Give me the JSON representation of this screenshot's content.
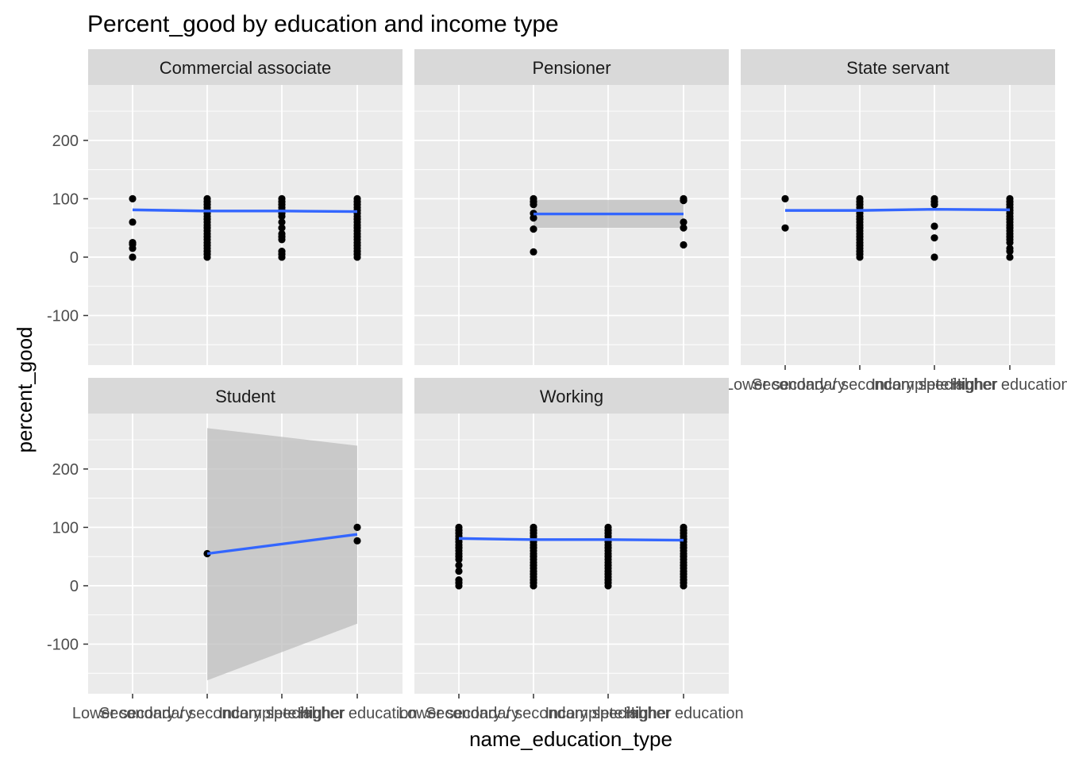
{
  "chart_data": {
    "type": "scatter",
    "title": "Percent_good by education and income type",
    "xlabel": "name_education_type",
    "ylabel": "percent_good",
    "x_categories": [
      "Lower secondary",
      "Secondary / secondary special",
      "Incomplete higher",
      "Higher education"
    ],
    "y_ticks": [
      -100,
      0,
      100,
      200
    ],
    "ylim": [
      -185,
      295
    ],
    "grid": true,
    "facet_layout": "3 columns, 2 rows",
    "colors": {
      "panel_background": "#EBEBEB",
      "strip_background": "#D9D9D9",
      "gridline": "#FFFFFF",
      "point": "#000000",
      "smooth_line": "#3366FF",
      "confidence_band": "#BDBDBD"
    },
    "facets": [
      {
        "label": "Commercial associate",
        "points": [
          {
            "category": 0,
            "values": [
              100,
              60,
              25,
              22,
              15,
              0
            ]
          },
          {
            "category": 1,
            "values": [
              100,
              95,
              90,
              85,
              80,
              75,
              70,
              65,
              60,
              55,
              50,
              45,
              40,
              35,
              30,
              25,
              20,
              15,
              10,
              5,
              0
            ]
          },
          {
            "category": 2,
            "values": [
              100,
              95,
              90,
              85,
              80,
              75,
              70,
              60,
              50,
              40,
              35,
              30,
              10,
              5,
              0
            ]
          },
          {
            "category": 3,
            "values": [
              100,
              95,
              90,
              85,
              80,
              75,
              70,
              65,
              60,
              55,
              50,
              45,
              40,
              35,
              30,
              25,
              20,
              15,
              10,
              5,
              0
            ]
          }
        ],
        "smooth": [
          {
            "category": 0,
            "value": 81
          },
          {
            "category": 1,
            "value": 79
          },
          {
            "category": 2,
            "value": 79
          },
          {
            "category": 3,
            "value": 78
          }
        ],
        "band": null
      },
      {
        "label": "Pensioner",
        "points": [
          {
            "category": 1,
            "values": [
              100,
              95,
              90,
              75,
              67,
              48,
              9
            ]
          },
          {
            "category": 3,
            "values": [
              100,
              97,
              60,
              50,
              21
            ]
          }
        ],
        "smooth": [
          {
            "category": 1,
            "value": 74
          },
          {
            "category": 3,
            "value": 74
          }
        ],
        "band": {
          "lower": [
            50,
            50
          ],
          "upper": [
            98,
            98
          ]
        }
      },
      {
        "label": "State servant",
        "points": [
          {
            "category": 0,
            "values": [
              100,
              50
            ]
          },
          {
            "category": 1,
            "values": [
              100,
              95,
              90,
              85,
              80,
              75,
              70,
              65,
              60,
              55,
              50,
              45,
              40,
              35,
              30,
              25,
              20,
              15,
              10,
              5,
              0
            ]
          },
          {
            "category": 2,
            "values": [
              100,
              95,
              90,
              53,
              33,
              0
            ]
          },
          {
            "category": 3,
            "values": [
              100,
              95,
              90,
              85,
              80,
              75,
              70,
              65,
              60,
              55,
              50,
              45,
              40,
              35,
              30,
              25,
              15,
              10,
              0
            ]
          }
        ],
        "smooth": [
          {
            "category": 0,
            "value": 80
          },
          {
            "category": 1,
            "value": 80
          },
          {
            "category": 2,
            "value": 82
          },
          {
            "category": 3,
            "value": 81
          }
        ],
        "band": null
      },
      {
        "label": "Student",
        "points": [
          {
            "category": 1,
            "values": [
              55
            ]
          },
          {
            "category": 3,
            "values": [
              100,
              77
            ]
          }
        ],
        "smooth": [
          {
            "category": 1,
            "value": 55
          },
          {
            "category": 3,
            "value": 88
          }
        ],
        "band": {
          "lower": [
            -162,
            -65
          ],
          "upper": [
            270,
            240
          ]
        }
      },
      {
        "label": "Working",
        "points": [
          {
            "category": 0,
            "values": [
              100,
              95,
              90,
              85,
              80,
              75,
              70,
              65,
              60,
              55,
              50,
              45,
              35,
              25,
              10,
              5,
              0
            ]
          },
          {
            "category": 1,
            "values": [
              100,
              95,
              90,
              85,
              80,
              75,
              70,
              65,
              60,
              55,
              50,
              45,
              40,
              35,
              30,
              25,
              20,
              15,
              10,
              5,
              0
            ]
          },
          {
            "category": 2,
            "values": [
              100,
              95,
              90,
              85,
              80,
              75,
              70,
              65,
              60,
              55,
              50,
              45,
              40,
              35,
              30,
              25,
              20,
              15,
              10,
              5,
              0
            ]
          },
          {
            "category": 3,
            "values": [
              100,
              95,
              90,
              85,
              80,
              75,
              70,
              65,
              60,
              55,
              50,
              45,
              40,
              35,
              30,
              25,
              20,
              15,
              10,
              5,
              0
            ]
          }
        ],
        "smooth": [
          {
            "category": 0,
            "value": 81
          },
          {
            "category": 1,
            "value": 79
          },
          {
            "category": 2,
            "value": 79
          },
          {
            "category": 3,
            "value": 78
          }
        ],
        "band": null
      }
    ]
  }
}
